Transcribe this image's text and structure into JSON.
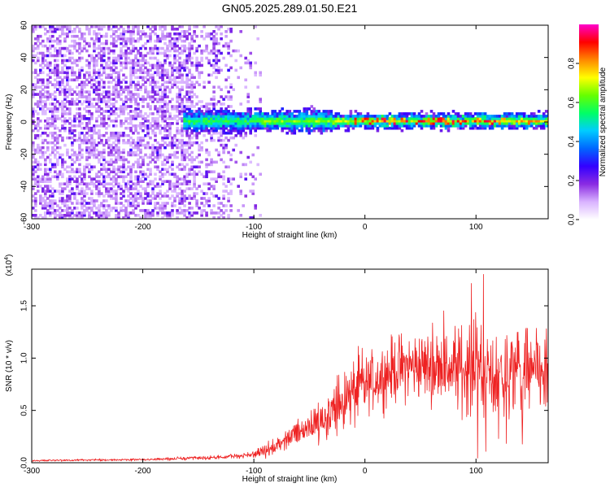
{
  "title": "GN05.2025.289.01.50.E21",
  "colors": {
    "snr_line": "#ee2222",
    "axis": "#000000"
  },
  "chart_data": [
    {
      "type": "heatmap",
      "title": "GN05.2025.289.01.50.E21",
      "xlabel": "Height of straight line (km)",
      "ylabel": "Frequency (Hz)",
      "xlim": [
        -300,
        165
      ],
      "ylim": [
        -60,
        60
      ],
      "x_ticks": [
        -300,
        -200,
        -100,
        0,
        100
      ],
      "y_ticks": [
        -60,
        -40,
        -20,
        0,
        20,
        40,
        60
      ],
      "colorbar": {
        "label": "Normalized spectral amplitude",
        "range": [
          0,
          1
        ],
        "ticks": [
          "0.0",
          "0.2",
          "0.4",
          "0.6",
          "0.8"
        ],
        "colors": [
          "#ffffff",
          "#d9b3ff",
          "#8a2be2",
          "#3300ff",
          "#0066ff",
          "#00ccff",
          "#00ff66",
          "#66ff00",
          "#ffff00",
          "#ff8800",
          "#ff0000",
          "#ff00cc"
        ]
      },
      "features": {
        "noise_region_x": [
          -300,
          -95
        ],
        "signal_band_x": [
          -165,
          165
        ],
        "signal_band_center_hz": 0,
        "peak_region_x": [
          -10,
          120
        ]
      }
    },
    {
      "type": "line",
      "xlabel": "Height of straight line (km)",
      "ylabel": "SNR (10 * v/v)",
      "scale_label": "(x10",
      "scale_exp": "4",
      "scale_close": ")",
      "xlim": [
        -300,
        165
      ],
      "ylim": [
        0,
        1.85
      ],
      "x_ticks": [
        -300,
        -200,
        -100,
        0,
        100
      ],
      "y_ticks": [
        "0.0",
        "0.5",
        "1.0",
        "1.5"
      ],
      "series": [
        {
          "envelope_x": [
            -300,
            -200,
            -130,
            -100,
            -80,
            -70,
            -60,
            -50,
            -40,
            -30,
            -20,
            -10,
            0,
            10,
            20,
            30,
            40,
            50,
            60,
            80,
            100,
            120,
            140,
            165
          ],
          "envelope_y": [
            0.02,
            0.03,
            0.05,
            0.08,
            0.15,
            0.22,
            0.3,
            0.35,
            0.42,
            0.48,
            0.58,
            0.66,
            0.74,
            0.8,
            0.86,
            0.9,
            0.92,
            0.93,
            0.92,
            0.9,
            0.88,
            0.86,
            0.85,
            0.85
          ]
        }
      ]
    }
  ]
}
